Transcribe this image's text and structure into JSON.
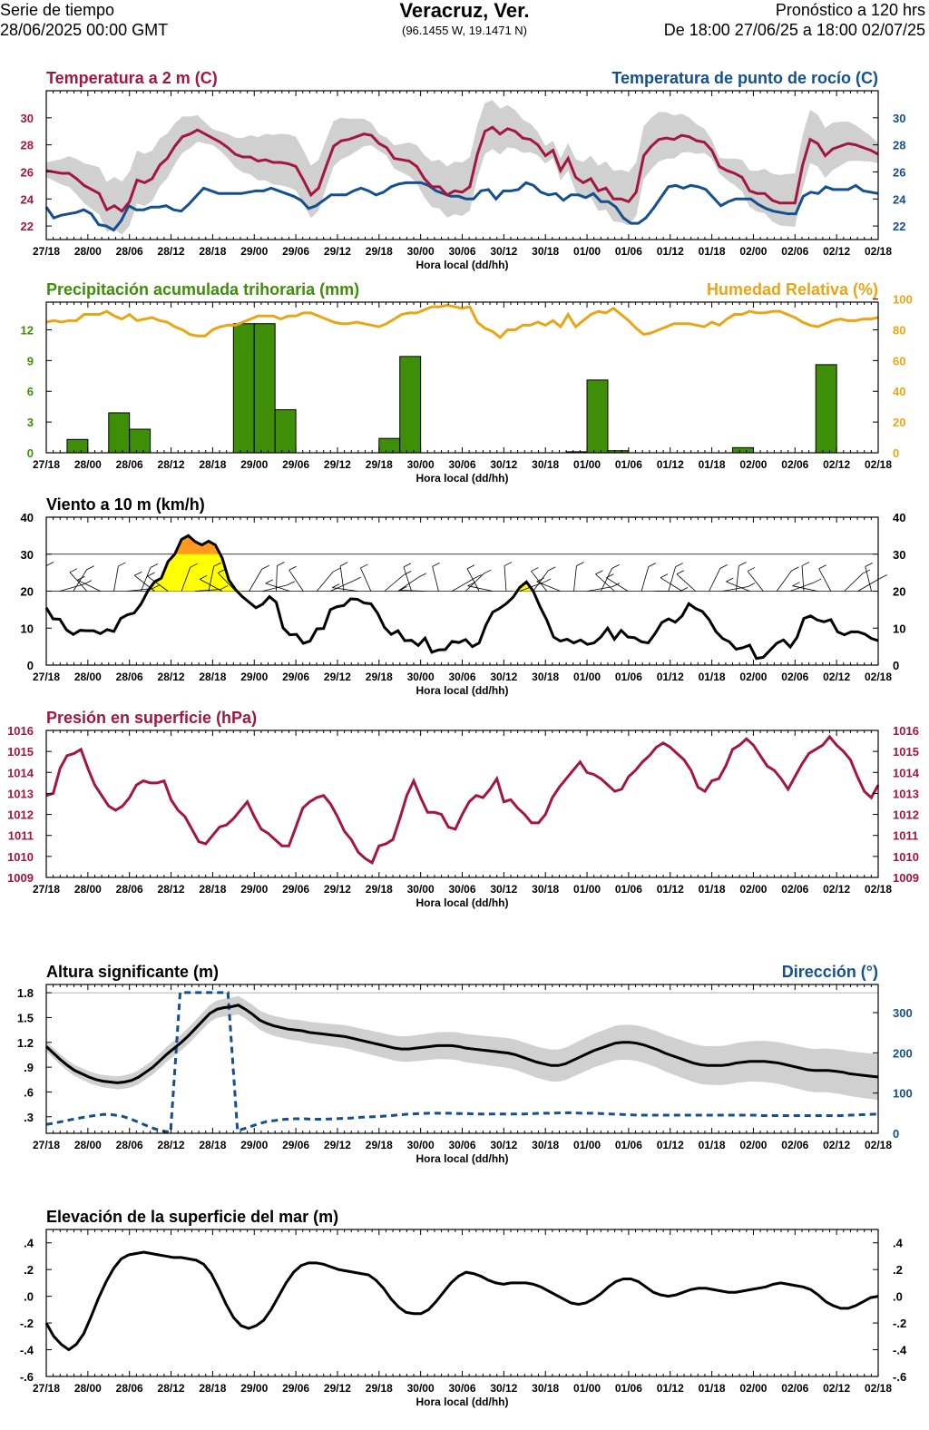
{
  "header": {
    "left_line1": "Serie de tiempo",
    "left_line2": "28/06/2025 00:00 GMT",
    "title": "Veracruz, Ver.",
    "coords": "(96.1455 W, 19.1471 N)",
    "right_line1": "Pronóstico a 120 hrs",
    "right_line2": "De 18:00 27/06/25 a 18:00 02/07/25"
  },
  "colors": {
    "temp": "#a3173f",
    "dew": "#144f8e",
    "precip": "#3f8e08",
    "rh": "#e8a617",
    "pres": "#a3173f",
    "wave": "#000000",
    "dir": "#144f8e",
    "spread": "#d0d0d0",
    "gust_low": "#ffff00",
    "gust_high": "#ff9a1f"
  },
  "x_ticks": [
    "27/18",
    "28/00",
    "28/06",
    "28/12",
    "28/18",
    "29/00",
    "29/06",
    "29/12",
    "29/18",
    "30/00",
    "30/06",
    "30/12",
    "30/18",
    "01/00",
    "01/06",
    "01/12",
    "01/18",
    "02/00",
    "02/06",
    "02/12",
    "02/18"
  ],
  "x_axis_label": "Hora local (dd/hh)",
  "chart_data": [
    {
      "id": "temperature",
      "type": "line",
      "title_left": "Temperatura a 2 m (C)",
      "title_right": "Temperatura de punto de rocío (C)",
      "ylim": [
        21,
        32
      ],
      "y_ticks_left": [
        "22",
        "24",
        "26",
        "28",
        "30"
      ],
      "y_ticks_right": [
        "22",
        "24",
        "26",
        "28",
        "30"
      ],
      "series": [
        {
          "key": "temp",
          "values": [
            26.1,
            26,
            25.9,
            25.9,
            25.5,
            25,
            24.7,
            24.4,
            23.2,
            23.5,
            23.1,
            23.8,
            25.4,
            25.2,
            25.5,
            26.5,
            27,
            27.9,
            28.6,
            28.8,
            29.1,
            28.8,
            28.5,
            28.2,
            27.8,
            27.3,
            27.1,
            27.1,
            26.8,
            26.9,
            26.7,
            26.7,
            26.6,
            26.4,
            25.4,
            24.3,
            24.8,
            26.4,
            27.9,
            28.3,
            28.4,
            28.6,
            28.8,
            28.7,
            28.1,
            27.8,
            27,
            26.9,
            26.8,
            26.4,
            25.5,
            24.9,
            24.9,
            24.3,
            24.6,
            24.5,
            24.9,
            27.3,
            29,
            29.3,
            28.8,
            29.2,
            29,
            28.5,
            28.4,
            28,
            27.2,
            27.6,
            26.1,
            27,
            25.6,
            25.2,
            25.5,
            24.6,
            24.8,
            24,
            24,
            23.8,
            24.5,
            27.2,
            27.9,
            28.4,
            28.5,
            28.4,
            28.7,
            28.6,
            28.3,
            28.2,
            27.6,
            26.4,
            26.1,
            25.9,
            25.6,
            24.6,
            24.4,
            24.4,
            23.9,
            23.7,
            23.7,
            23.7,
            26.5,
            28.4,
            28.1,
            27.2,
            27.7,
            27.9,
            28.1,
            28,
            27.8,
            27.6,
            27.3
          ]
        },
        {
          "key": "dew",
          "values": [
            23.4,
            22.6,
            22.8,
            22.9,
            23,
            23.2,
            22.9,
            22.1,
            22,
            21.7,
            22.4,
            23.5,
            23.2,
            23.2,
            23.4,
            23.4,
            23.5,
            23.2,
            23.1,
            23.6,
            24.2,
            24.8,
            24.6,
            24.4,
            24.4,
            24.4,
            24.4,
            24.5,
            24.6,
            24.6,
            24.8,
            24.6,
            24.4,
            24.2,
            23.9,
            23.3,
            23.5,
            23.9,
            24.3,
            24.3,
            24.3,
            24.6,
            24.8,
            24.6,
            24.3,
            24.5,
            24.9,
            25.1,
            25.2,
            25.2,
            25.2,
            25,
            24.6,
            24.4,
            24.2,
            24.2,
            24,
            24,
            24.6,
            24.7,
            24,
            24.6,
            24.6,
            24.7,
            25.2,
            25,
            24.5,
            24.3,
            24.4,
            23.9,
            24.3,
            24.3,
            24.1,
            24.4,
            23.8,
            23.8,
            23.4,
            22.6,
            22.2,
            22.2,
            22.6,
            23.3,
            24.1,
            24.9,
            25,
            24.8,
            25,
            24.9,
            24.7,
            24.1,
            23.5,
            23.8,
            24,
            24,
            24,
            23.6,
            23.3,
            23.1,
            23,
            22.9,
            22.9,
            24.2,
            24.5,
            24.4,
            24.9,
            24.7,
            24.7,
            24.7,
            25,
            24.6,
            24.5,
            24.4
          ]
        }
      ]
    },
    {
      "id": "precip",
      "type": "bar",
      "title_left": "Precipitación acumulada trihoraria (mm)",
      "title_right": "Humedad Relativa (%)",
      "ylim_left": [
        0,
        14.7
      ],
      "ylim_right": [
        0,
        98
      ],
      "y_ticks_left": [
        "0",
        "3",
        "6",
        "9",
        "12"
      ],
      "y_ticks_right": [
        "0",
        "20",
        "40",
        "60",
        "80",
        "100"
      ],
      "bars": [
        0,
        1.3,
        0,
        3.9,
        2.3,
        0,
        0,
        0,
        0,
        12.6,
        12.6,
        4.2,
        0,
        0,
        0,
        0,
        1.4,
        9.4,
        0,
        0,
        0,
        0,
        0,
        0,
        0,
        0.1,
        7.1,
        0.2,
        0,
        0,
        0,
        0,
        0,
        0.5,
        0,
        0,
        0,
        8.6,
        0,
        0,
        0
      ],
      "rh": [
        85,
        86,
        85,
        86,
        86,
        90,
        90,
        90,
        92,
        89,
        87,
        90,
        86,
        87,
        88,
        86,
        85,
        82,
        80,
        77,
        76,
        76,
        80,
        82,
        83,
        83,
        85,
        87,
        89,
        89,
        89,
        87,
        89,
        89,
        91,
        91,
        89,
        87,
        85,
        84,
        84,
        85,
        84,
        83,
        82,
        84,
        87,
        90,
        91,
        91,
        93,
        95,
        95,
        96,
        95,
        94,
        95,
        85,
        81,
        79,
        75,
        80,
        80,
        83,
        83,
        85,
        83,
        86,
        82,
        90,
        82,
        86,
        90,
        92,
        91,
        94,
        90,
        86,
        81,
        77,
        78,
        80,
        82,
        84,
        84,
        84,
        83,
        82,
        85,
        83,
        87,
        90,
        90,
        92,
        91,
        91,
        92,
        92,
        90,
        88,
        85,
        83,
        82,
        84,
        86,
        87,
        86,
        86,
        87,
        87,
        88
      ]
    },
    {
      "id": "wind",
      "type": "line",
      "title_left": "Viento a 10 m (km/h)",
      "ylim": [
        0,
        40
      ],
      "y_ticks_left": [
        "0",
        "10",
        "20",
        "30",
        "40"
      ],
      "y_ticks_right": [
        "0",
        "10",
        "20",
        "30",
        "40"
      ],
      "thresholds": [
        20,
        30
      ],
      "values": [
        15.5,
        12.5,
        12.4,
        9.5,
        8.3,
        9.4,
        9.3,
        9.3,
        8.5,
        9.6,
        9.1,
        12.6,
        13.6,
        14.1,
        16.5,
        20,
        22.5,
        23.5,
        28,
        30,
        34,
        35,
        33.4,
        32.5,
        33.5,
        32.5,
        29,
        23,
        20.4,
        18.5,
        17,
        15.5,
        16.5,
        18.5,
        17,
        10.1,
        8.2,
        8.3,
        5.9,
        6.5,
        9.8,
        9.9,
        15,
        15.8,
        16.1,
        17.9,
        17.8,
        16.8,
        16.6,
        14,
        10.2,
        8.3,
        9.3,
        6.6,
        6.7,
        5.3,
        7.3,
        3.5,
        4.1,
        4.2,
        6.4,
        6.1,
        6.9,
        5,
        6,
        10.8,
        14.3,
        15.3,
        16.6,
        18.3,
        21,
        22.5,
        20,
        15.8,
        12.2,
        7.6,
        6.5,
        7,
        6,
        6.8,
        5.6,
        6,
        7.6,
        10,
        7,
        9.4,
        7.6,
        7.4,
        6.3,
        6,
        8.5,
        11.5,
        12.5,
        11.6,
        13.3,
        16.6,
        15.3,
        14.5,
        12.3,
        9.1,
        7.2,
        6.3,
        4.3,
        4.7,
        5.4,
        1.8,
        2.1,
        4,
        5.9,
        6.8,
        4.9,
        7.5,
        12.6,
        13.3,
        12.2,
        11.7,
        12.3,
        9,
        8.2,
        9,
        9,
        8.4,
        7.2,
        6.6
      ]
    },
    {
      "id": "pressure",
      "type": "line",
      "title_left": "Presión en superficie (hPa)",
      "ylim": [
        1009,
        1016
      ],
      "y_ticks_left": [
        "1009",
        "1010",
        "1011",
        "1012",
        "1013",
        "1014",
        "1015",
        "1016"
      ],
      "y_ticks_right": [
        "1009",
        "1010",
        "1011",
        "1012",
        "1013",
        "1014",
        "1015",
        "1016"
      ],
      "values": [
        1012.9,
        1013,
        1014.2,
        1014.8,
        1014.9,
        1015.1,
        1014.2,
        1013.4,
        1012.9,
        1012.4,
        1012.2,
        1012.4,
        1012.8,
        1013.4,
        1013.6,
        1013.5,
        1013.5,
        1013.6,
        1012.7,
        1012.2,
        1011.9,
        1011.3,
        1010.7,
        1010.6,
        1011,
        1011.4,
        1011.5,
        1011.8,
        1012.2,
        1012.6,
        1011.9,
        1011.3,
        1011.1,
        1010.8,
        1010.5,
        1010.5,
        1011.4,
        1012.3,
        1012.6,
        1012.8,
        1012.9,
        1012.5,
        1011.9,
        1011.2,
        1010.8,
        1010.2,
        1009.9,
        1009.7,
        1010.5,
        1010.6,
        1010.8,
        1011.8,
        1012.9,
        1013.6,
        1012.8,
        1012.1,
        1012.1,
        1012,
        1011.4,
        1011.3,
        1012,
        1012.6,
        1012.9,
        1012.8,
        1013.2,
        1013.7,
        1012.6,
        1012.7,
        1012.3,
        1012,
        1011.6,
        1011.6,
        1012,
        1012.8,
        1013.3,
        1013.7,
        1014.1,
        1014.5,
        1014,
        1013.9,
        1013.7,
        1013.4,
        1013.1,
        1013.2,
        1013.8,
        1014.1,
        1014.5,
        1014.8,
        1015.2,
        1015.4,
        1015.2,
        1014.9,
        1014.6,
        1014.1,
        1013.3,
        1013.1,
        1013.6,
        1013.7,
        1014.3,
        1015.1,
        1015.3,
        1015.6,
        1015.3,
        1014.8,
        1014.3,
        1014.1,
        1013.7,
        1013.2,
        1013.8,
        1014.4,
        1014.9,
        1015.1,
        1015.3,
        1015.7,
        1015.3,
        1015,
        1014.6,
        1013.8,
        1013.1,
        1012.8,
        1013.4
      ]
    },
    {
      "id": "waves",
      "type": "line",
      "title_left": "Altura significante (m)",
      "title_right": "Dirección (°)",
      "ylim_left": [
        0.1,
        1.9
      ],
      "ylim_right": [
        0,
        370
      ],
      "y_ticks_left": [
        ".3",
        ".6",
        ".9",
        "1.2",
        "1.5",
        "1.8"
      ],
      "y_ticks_right": [
        "0",
        "100",
        "200",
        "300"
      ],
      "height": [
        1.15,
        1.07,
        0.99,
        0.92,
        0.86,
        0.82,
        0.78,
        0.75,
        0.73,
        0.72,
        0.71,
        0.72,
        0.74,
        0.78,
        0.84,
        0.9,
        0.98,
        1.06,
        1.13,
        1.2,
        1.28,
        1.37,
        1.46,
        1.55,
        1.6,
        1.62,
        1.63,
        1.65,
        1.6,
        1.54,
        1.47,
        1.43,
        1.4,
        1.38,
        1.36,
        1.35,
        1.34,
        1.32,
        1.31,
        1.3,
        1.29,
        1.28,
        1.27,
        1.25,
        1.23,
        1.21,
        1.19,
        1.17,
        1.15,
        1.13,
        1.12,
        1.12,
        1.13,
        1.14,
        1.15,
        1.16,
        1.16,
        1.16,
        1.15,
        1.13,
        1.12,
        1.11,
        1.1,
        1.09,
        1.08,
        1.07,
        1.05,
        1.02,
        0.99,
        0.96,
        0.94,
        0.92,
        0.92,
        0.94,
        0.98,
        1.02,
        1.06,
        1.1,
        1.13,
        1.16,
        1.19,
        1.2,
        1.2,
        1.19,
        1.17,
        1.14,
        1.11,
        1.07,
        1.04,
        1.01,
        0.98,
        0.95,
        0.93,
        0.92,
        0.92,
        0.92,
        0.93,
        0.95,
        0.96,
        0.97,
        0.97,
        0.97,
        0.96,
        0.95,
        0.93,
        0.91,
        0.89,
        0.87,
        0.86,
        0.86,
        0.86,
        0.85,
        0.84,
        0.82,
        0.81,
        0.8,
        0.79,
        0.78
      ],
      "direction": [
        22,
        26,
        31,
        36,
        40,
        44,
        47,
        46,
        42,
        34,
        24,
        14,
        6,
        3,
        350,
        350,
        350,
        350,
        350,
        350,
        6,
        14,
        22,
        29,
        32,
        35,
        36,
        36,
        35,
        35,
        36,
        37,
        38,
        40,
        41,
        42,
        44,
        46,
        48,
        49,
        50,
        50,
        50,
        49,
        49,
        48,
        48,
        48,
        48,
        48,
        48,
        49,
        50,
        50,
        51,
        51,
        50,
        50,
        49,
        48,
        47,
        46,
        45,
        45,
        45,
        45,
        45,
        45,
        45,
        45,
        45,
        45,
        45,
        45,
        45,
        44,
        44,
        44,
        44,
        44,
        44,
        44,
        44,
        44,
        45,
        46,
        47,
        48
      ]
    },
    {
      "id": "ssh",
      "type": "line",
      "title_left": "Elevación de la superficie del mar (m)",
      "ylim": [
        -0.6,
        0.5
      ],
      "y_ticks_left": [
        "-.6",
        "-.4",
        "-.2",
        ".0",
        ".2",
        ".4"
      ],
      "y_ticks_right": [
        "-.6",
        "-.4",
        "-.2",
        ".0",
        ".2",
        ".4"
      ],
      "values": [
        -0.2,
        -0.3,
        -0.36,
        -0.4,
        -0.36,
        -0.28,
        -0.15,
        -0.01,
        0.11,
        0.21,
        0.28,
        0.31,
        0.32,
        0.33,
        0.32,
        0.31,
        0.3,
        0.29,
        0.29,
        0.28,
        0.27,
        0.24,
        0.17,
        0.06,
        -0.06,
        -0.16,
        -0.22,
        -0.24,
        -0.22,
        -0.18,
        -0.1,
        0,
        0.1,
        0.18,
        0.23,
        0.25,
        0.25,
        0.24,
        0.22,
        0.2,
        0.19,
        0.18,
        0.17,
        0.16,
        0.12,
        0.06,
        -0.02,
        -0.08,
        -0.12,
        -0.13,
        -0.13,
        -0.1,
        -0.04,
        0.03,
        0.1,
        0.15,
        0.18,
        0.17,
        0.15,
        0.12,
        0.1,
        0.09,
        0.1,
        0.1,
        0.1,
        0.09,
        0.07,
        0.04,
        0.01,
        -0.02,
        -0.05,
        -0.06,
        -0.05,
        -0.02,
        0.02,
        0.07,
        0.11,
        0.13,
        0.13,
        0.11,
        0.07,
        0.03,
        0.01,
        0,
        0.01,
        0.03,
        0.05,
        0.06,
        0.06,
        0.05,
        0.04,
        0.03,
        0.03,
        0.04,
        0.05,
        0.06,
        0.07,
        0.09,
        0.1,
        0.09,
        0.08,
        0.07,
        0.05,
        0.01,
        -0.04,
        -0.07,
        -0.09,
        -0.09,
        -0.07,
        -0.04,
        -0.01,
        0
      ]
    }
  ]
}
